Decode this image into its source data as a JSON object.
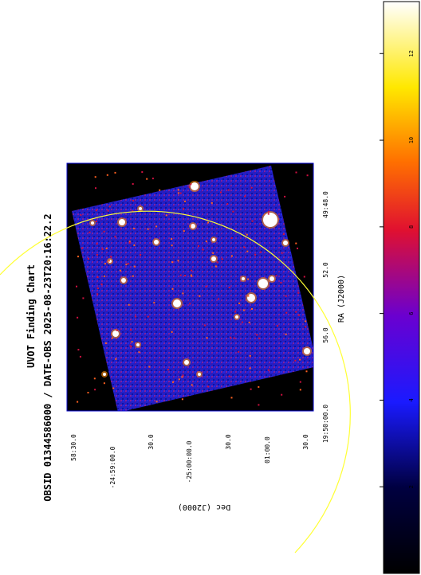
{
  "figure": {
    "title_line1": "UVOT Finding Chart",
    "title_line2": "OBSID 01344586000 / DATE-OBS 2025-08-23T20:16:22.2",
    "xlabel": "RA (J2000)",
    "ylabel": "Dec (J2000)",
    "ra_ticks": [
      "49:48.0",
      "52.0",
      "56.0",
      "19:50:00.0"
    ],
    "dec_ticks": [
      "58:30.0",
      "-24:59:00.0",
      "30.0",
      "-25:00:00.0",
      "30.0",
      "01:00.0",
      "30.0"
    ],
    "colorbar_ticks": [
      "2",
      "4",
      "6",
      "8",
      "10",
      "12"
    ],
    "colormap": "heat (black-blue-red-yellow-white)",
    "circle_color": "#ffff33",
    "image_background": "#000000",
    "frame_color": "#0000cc"
  }
}
